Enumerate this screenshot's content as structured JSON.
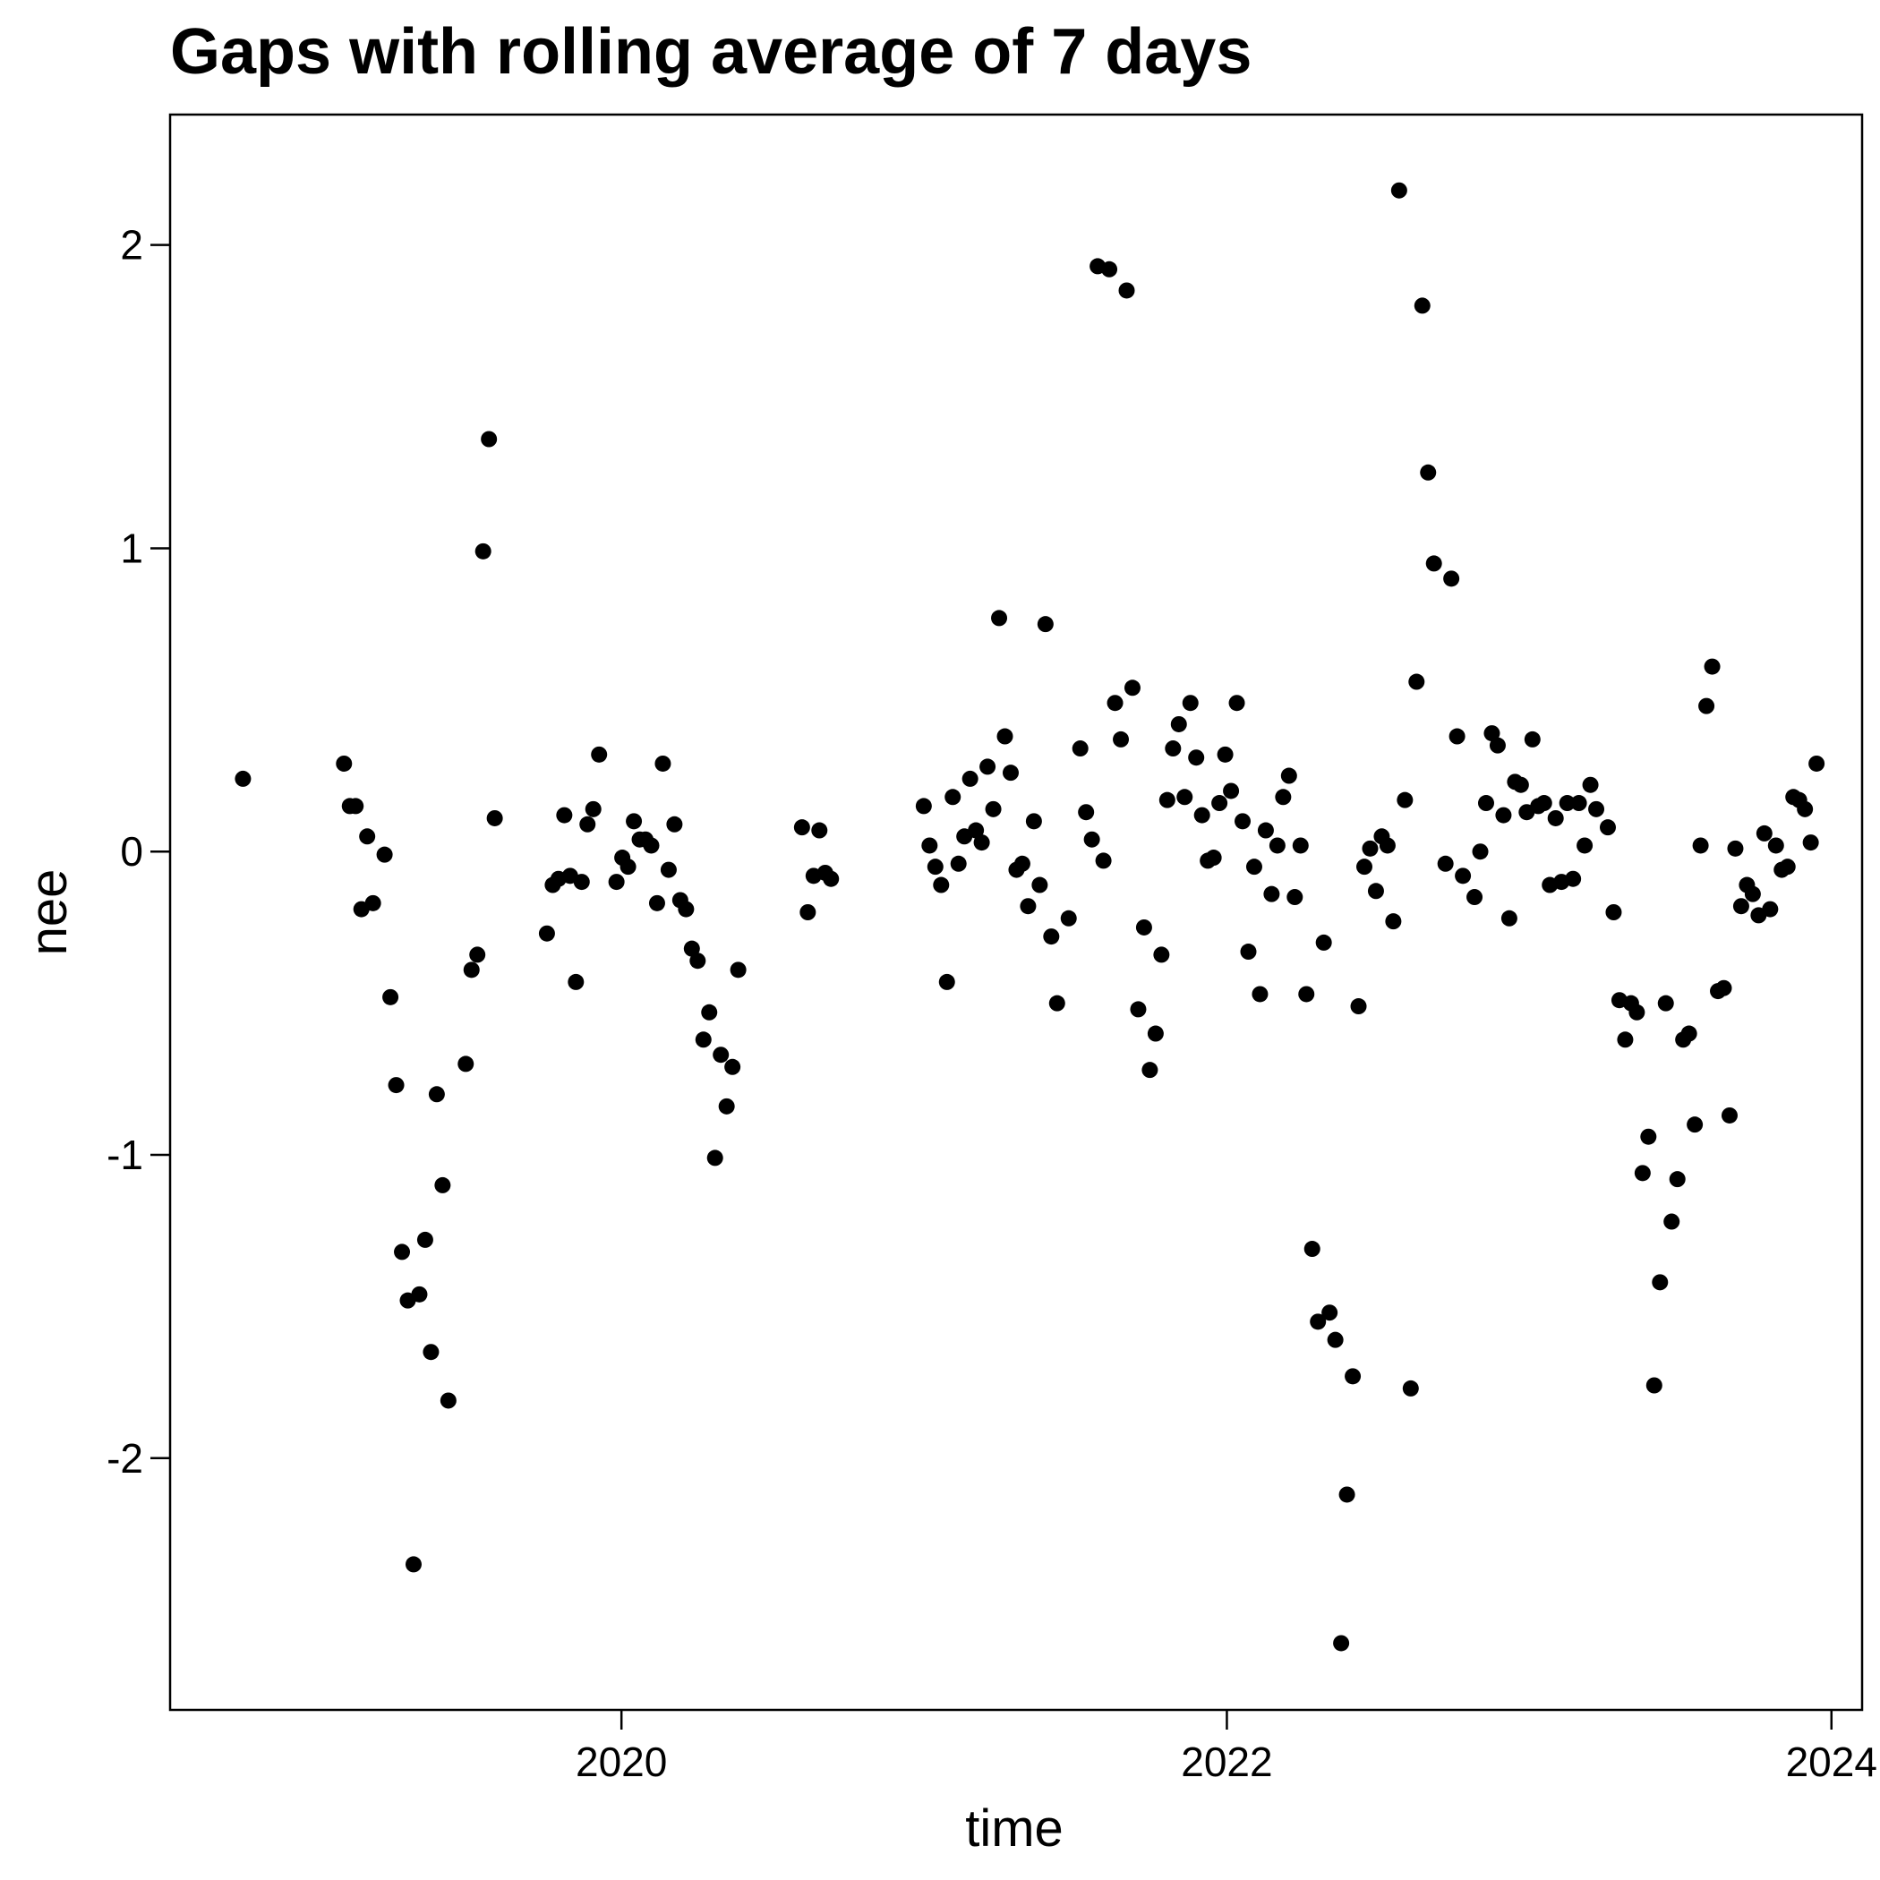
{
  "chart_data": {
    "type": "scatter",
    "title": "Gaps with rolling average of 7 days",
    "xlabel": "time",
    "ylabel": "nee",
    "xlim": [
      "2018-07-05",
      "2024-02-07"
    ],
    "ylim": [
      -2.83,
      2.43
    ],
    "x_ticks": [
      {
        "date": "2020-01-01",
        "label": "2020"
      },
      {
        "date": "2022-01-01",
        "label": "2022"
      },
      {
        "date": "2024-01-01",
        "label": "2024"
      }
    ],
    "y_ticks": [
      {
        "value": 2,
        "label": "2"
      },
      {
        "value": 1,
        "label": "1"
      },
      {
        "value": 0,
        "label": "0"
      },
      {
        "value": -1,
        "label": "-1"
      },
      {
        "value": -2,
        "label": "-2"
      }
    ],
    "grid": false,
    "marker_color": "#000000",
    "points": [
      {
        "x": "2018-10-01",
        "y": 0.24
      },
      {
        "x": "2019-01-31",
        "y": 0.29
      },
      {
        "x": "2019-02-07",
        "y": 0.15
      },
      {
        "x": "2019-02-14",
        "y": 0.15
      },
      {
        "x": "2019-02-21",
        "y": -0.19
      },
      {
        "x": "2019-02-28",
        "y": 0.05
      },
      {
        "x": "2019-03-07",
        "y": -0.17
      },
      {
        "x": "2019-03-21",
        "y": -0.01
      },
      {
        "x": "2019-03-28",
        "y": -0.48
      },
      {
        "x": "2019-04-04",
        "y": -0.77
      },
      {
        "x": "2019-04-11",
        "y": -1.32
      },
      {
        "x": "2019-04-18",
        "y": -1.48
      },
      {
        "x": "2019-04-25",
        "y": -2.35
      },
      {
        "x": "2019-05-02",
        "y": -1.46
      },
      {
        "x": "2019-05-09",
        "y": -1.28
      },
      {
        "x": "2019-05-16",
        "y": -1.65
      },
      {
        "x": "2019-05-23",
        "y": -0.8
      },
      {
        "x": "2019-05-30",
        "y": -1.1
      },
      {
        "x": "2019-06-06",
        "y": -1.81
      },
      {
        "x": "2019-06-27",
        "y": -0.7
      },
      {
        "x": "2019-07-04",
        "y": -0.39
      },
      {
        "x": "2019-07-11",
        "y": -0.34
      },
      {
        "x": "2019-07-18",
        "y": 0.99
      },
      {
        "x": "2019-07-25",
        "y": 1.36
      },
      {
        "x": "2019-08-01",
        "y": 0.11
      },
      {
        "x": "2019-10-03",
        "y": -0.27
      },
      {
        "x": "2019-10-10",
        "y": -0.11
      },
      {
        "x": "2019-10-17",
        "y": -0.09
      },
      {
        "x": "2019-10-24",
        "y": 0.12
      },
      {
        "x": "2019-10-31",
        "y": -0.08
      },
      {
        "x": "2019-11-07",
        "y": -0.43
      },
      {
        "x": "2019-11-14",
        "y": -0.1
      },
      {
        "x": "2019-11-21",
        "y": 0.09
      },
      {
        "x": "2019-11-28",
        "y": 0.14
      },
      {
        "x": "2019-12-05",
        "y": 0.32
      },
      {
        "x": "2019-12-26",
        "y": -0.1
      },
      {
        "x": "2020-01-02",
        "y": -0.02
      },
      {
        "x": "2020-01-09",
        "y": -0.05
      },
      {
        "x": "2020-01-16",
        "y": 0.1
      },
      {
        "x": "2020-01-23",
        "y": 0.04
      },
      {
        "x": "2020-01-30",
        "y": 0.04
      },
      {
        "x": "2020-02-06",
        "y": 0.02
      },
      {
        "x": "2020-02-13",
        "y": -0.17
      },
      {
        "x": "2020-02-20",
        "y": 0.29
      },
      {
        "x": "2020-02-27",
        "y": -0.06
      },
      {
        "x": "2020-03-05",
        "y": 0.09
      },
      {
        "x": "2020-03-12",
        "y": -0.16
      },
      {
        "x": "2020-03-19",
        "y": -0.19
      },
      {
        "x": "2020-03-26",
        "y": -0.32
      },
      {
        "x": "2020-04-02",
        "y": -0.36
      },
      {
        "x": "2020-04-09",
        "y": -0.62
      },
      {
        "x": "2020-04-16",
        "y": -0.53
      },
      {
        "x": "2020-04-23",
        "y": -1.01
      },
      {
        "x": "2020-04-30",
        "y": -0.67
      },
      {
        "x": "2020-05-07",
        "y": -0.84
      },
      {
        "x": "2020-05-14",
        "y": -0.71
      },
      {
        "x": "2020-05-21",
        "y": -0.39
      },
      {
        "x": "2020-08-06",
        "y": 0.08
      },
      {
        "x": "2020-08-13",
        "y": -0.2
      },
      {
        "x": "2020-08-20",
        "y": -0.08
      },
      {
        "x": "2020-08-27",
        "y": 0.07
      },
      {
        "x": "2020-09-03",
        "y": -0.07
      },
      {
        "x": "2020-09-10",
        "y": -0.09
      },
      {
        "x": "2020-12-31",
        "y": 0.15
      },
      {
        "x": "2021-01-07",
        "y": 0.02
      },
      {
        "x": "2021-01-14",
        "y": -0.05
      },
      {
        "x": "2021-01-21",
        "y": -0.11
      },
      {
        "x": "2021-01-28",
        "y": -0.43
      },
      {
        "x": "2021-02-04",
        "y": 0.18
      },
      {
        "x": "2021-02-11",
        "y": -0.04
      },
      {
        "x": "2021-02-18",
        "y": 0.05
      },
      {
        "x": "2021-02-25",
        "y": 0.24
      },
      {
        "x": "2021-03-04",
        "y": 0.07
      },
      {
        "x": "2021-03-11",
        "y": 0.03
      },
      {
        "x": "2021-03-18",
        "y": 0.28
      },
      {
        "x": "2021-03-25",
        "y": 0.14
      },
      {
        "x": "2021-04-01",
        "y": 0.77
      },
      {
        "x": "2021-04-08",
        "y": 0.38
      },
      {
        "x": "2021-04-15",
        "y": 0.26
      },
      {
        "x": "2021-04-22",
        "y": -0.06
      },
      {
        "x": "2021-04-29",
        "y": -0.04
      },
      {
        "x": "2021-05-06",
        "y": -0.18
      },
      {
        "x": "2021-05-13",
        "y": 0.1
      },
      {
        "x": "2021-05-20",
        "y": -0.11
      },
      {
        "x": "2021-05-27",
        "y": 0.75
      },
      {
        "x": "2021-06-03",
        "y": -0.28
      },
      {
        "x": "2021-06-10",
        "y": -0.5
      },
      {
        "x": "2021-06-24",
        "y": -0.22
      },
      {
        "x": "2021-07-08",
        "y": 0.34
      },
      {
        "x": "2021-07-15",
        "y": 0.13
      },
      {
        "x": "2021-07-22",
        "y": 0.04
      },
      {
        "x": "2021-07-29",
        "y": 1.93
      },
      {
        "x": "2021-08-05",
        "y": -0.03
      },
      {
        "x": "2021-08-12",
        "y": 1.92
      },
      {
        "x": "2021-08-19",
        "y": 0.49
      },
      {
        "x": "2021-08-26",
        "y": 0.37
      },
      {
        "x": "2021-09-02",
        "y": 1.85
      },
      {
        "x": "2021-09-09",
        "y": 0.54
      },
      {
        "x": "2021-09-16",
        "y": -0.52
      },
      {
        "x": "2021-09-23",
        "y": -0.25
      },
      {
        "x": "2021-09-30",
        "y": -0.72
      },
      {
        "x": "2021-10-07",
        "y": -0.6
      },
      {
        "x": "2021-10-14",
        "y": -0.34
      },
      {
        "x": "2021-10-21",
        "y": 0.17
      },
      {
        "x": "2021-10-28",
        "y": 0.34
      },
      {
        "x": "2021-11-04",
        "y": 0.42
      },
      {
        "x": "2021-11-11",
        "y": 0.18
      },
      {
        "x": "2021-11-18",
        "y": 0.49
      },
      {
        "x": "2021-11-25",
        "y": 0.31
      },
      {
        "x": "2021-12-02",
        "y": 0.12
      },
      {
        "x": "2021-12-09",
        "y": -0.03
      },
      {
        "x": "2021-12-16",
        "y": -0.02
      },
      {
        "x": "2021-12-23",
        "y": 0.16
      },
      {
        "x": "2021-12-30",
        "y": 0.32
      },
      {
        "x": "2022-01-06",
        "y": 0.2
      },
      {
        "x": "2022-01-13",
        "y": 0.49
      },
      {
        "x": "2022-01-20",
        "y": 0.1
      },
      {
        "x": "2022-01-27",
        "y": -0.33
      },
      {
        "x": "2022-02-03",
        "y": -0.05
      },
      {
        "x": "2022-02-10",
        "y": -0.47
      },
      {
        "x": "2022-02-17",
        "y": 0.07
      },
      {
        "x": "2022-02-24",
        "y": -0.14
      },
      {
        "x": "2022-03-03",
        "y": 0.02
      },
      {
        "x": "2022-03-10",
        "y": 0.18
      },
      {
        "x": "2022-03-17",
        "y": 0.25
      },
      {
        "x": "2022-03-24",
        "y": -0.15
      },
      {
        "x": "2022-03-31",
        "y": 0.02
      },
      {
        "x": "2022-04-07",
        "y": -0.47
      },
      {
        "x": "2022-04-14",
        "y": -1.31
      },
      {
        "x": "2022-04-21",
        "y": -1.55
      },
      {
        "x": "2022-04-28",
        "y": -0.3
      },
      {
        "x": "2022-05-05",
        "y": -1.52
      },
      {
        "x": "2022-05-12",
        "y": -1.61
      },
      {
        "x": "2022-05-19",
        "y": -2.61
      },
      {
        "x": "2022-05-26",
        "y": -2.12
      },
      {
        "x": "2022-06-02",
        "y": -1.73
      },
      {
        "x": "2022-06-09",
        "y": -0.51
      },
      {
        "x": "2022-06-16",
        "y": -0.05
      },
      {
        "x": "2022-06-23",
        "y": 0.01
      },
      {
        "x": "2022-06-30",
        "y": -0.13
      },
      {
        "x": "2022-07-07",
        "y": 0.05
      },
      {
        "x": "2022-07-14",
        "y": 0.02
      },
      {
        "x": "2022-07-21",
        "y": -0.23
      },
      {
        "x": "2022-07-28",
        "y": 2.18
      },
      {
        "x": "2022-08-04",
        "y": 0.17
      },
      {
        "x": "2022-08-11",
        "y": -1.77
      },
      {
        "x": "2022-08-18",
        "y": 0.56
      },
      {
        "x": "2022-08-25",
        "y": 1.8
      },
      {
        "x": "2022-09-01",
        "y": 1.25
      },
      {
        "x": "2022-09-08",
        "y": 0.95
      },
      {
        "x": "2022-09-22",
        "y": -0.04
      },
      {
        "x": "2022-09-29",
        "y": 0.9
      },
      {
        "x": "2022-10-06",
        "y": 0.38
      },
      {
        "x": "2022-10-13",
        "y": -0.08
      },
      {
        "x": "2022-10-27",
        "y": -0.15
      },
      {
        "x": "2022-11-03",
        "y": 0.0
      },
      {
        "x": "2022-11-10",
        "y": 0.16
      },
      {
        "x": "2022-11-17",
        "y": 0.39
      },
      {
        "x": "2022-11-24",
        "y": 0.35
      },
      {
        "x": "2022-12-01",
        "y": 0.12
      },
      {
        "x": "2022-12-08",
        "y": -0.22
      },
      {
        "x": "2022-12-15",
        "y": 0.23
      },
      {
        "x": "2022-12-22",
        "y": 0.22
      },
      {
        "x": "2022-12-29",
        "y": 0.13
      },
      {
        "x": "2023-01-05",
        "y": 0.37
      },
      {
        "x": "2023-01-12",
        "y": 0.15
      },
      {
        "x": "2023-01-19",
        "y": 0.16
      },
      {
        "x": "2023-01-26",
        "y": -0.11
      },
      {
        "x": "2023-02-02",
        "y": 0.11
      },
      {
        "x": "2023-02-09",
        "y": -0.1
      },
      {
        "x": "2023-02-16",
        "y": 0.16
      },
      {
        "x": "2023-02-23",
        "y": -0.09
      },
      {
        "x": "2023-03-02",
        "y": 0.16
      },
      {
        "x": "2023-03-09",
        "y": 0.02
      },
      {
        "x": "2023-03-16",
        "y": 0.22
      },
      {
        "x": "2023-03-23",
        "y": 0.14
      },
      {
        "x": "2023-04-06",
        "y": 0.08
      },
      {
        "x": "2023-04-13",
        "y": -0.2
      },
      {
        "x": "2023-04-20",
        "y": -0.49
      },
      {
        "x": "2023-04-27",
        "y": -0.62
      },
      {
        "x": "2023-05-04",
        "y": -0.5
      },
      {
        "x": "2023-05-11",
        "y": -0.53
      },
      {
        "x": "2023-05-18",
        "y": -1.06
      },
      {
        "x": "2023-05-25",
        "y": -0.94
      },
      {
        "x": "2023-06-01",
        "y": -1.76
      },
      {
        "x": "2023-06-08",
        "y": -1.42
      },
      {
        "x": "2023-06-15",
        "y": -0.5
      },
      {
        "x": "2023-06-22",
        "y": -1.22
      },
      {
        "x": "2023-06-29",
        "y": -1.08
      },
      {
        "x": "2023-07-06",
        "y": -0.62
      },
      {
        "x": "2023-07-13",
        "y": -0.6
      },
      {
        "x": "2023-07-20",
        "y": -0.9
      },
      {
        "x": "2023-07-27",
        "y": 0.02
      },
      {
        "x": "2023-08-03",
        "y": 0.48
      },
      {
        "x": "2023-08-10",
        "y": 0.61
      },
      {
        "x": "2023-08-17",
        "y": -0.46
      },
      {
        "x": "2023-08-24",
        "y": -0.45
      },
      {
        "x": "2023-08-31",
        "y": -0.87
      },
      {
        "x": "2023-09-07",
        "y": 0.01
      },
      {
        "x": "2023-09-14",
        "y": -0.18
      },
      {
        "x": "2023-09-21",
        "y": -0.11
      },
      {
        "x": "2023-09-28",
        "y": -0.14
      },
      {
        "x": "2023-10-05",
        "y": -0.21
      },
      {
        "x": "2023-10-12",
        "y": 0.06
      },
      {
        "x": "2023-10-19",
        "y": -0.19
      },
      {
        "x": "2023-10-26",
        "y": 0.02
      },
      {
        "x": "2023-11-02",
        "y": -0.06
      },
      {
        "x": "2023-11-09",
        "y": -0.05
      },
      {
        "x": "2023-11-16",
        "y": 0.18
      },
      {
        "x": "2023-11-23",
        "y": 0.17
      },
      {
        "x": "2023-11-30",
        "y": 0.14
      },
      {
        "x": "2023-12-07",
        "y": 0.03
      },
      {
        "x": "2023-12-14",
        "y": 0.29
      }
    ]
  }
}
